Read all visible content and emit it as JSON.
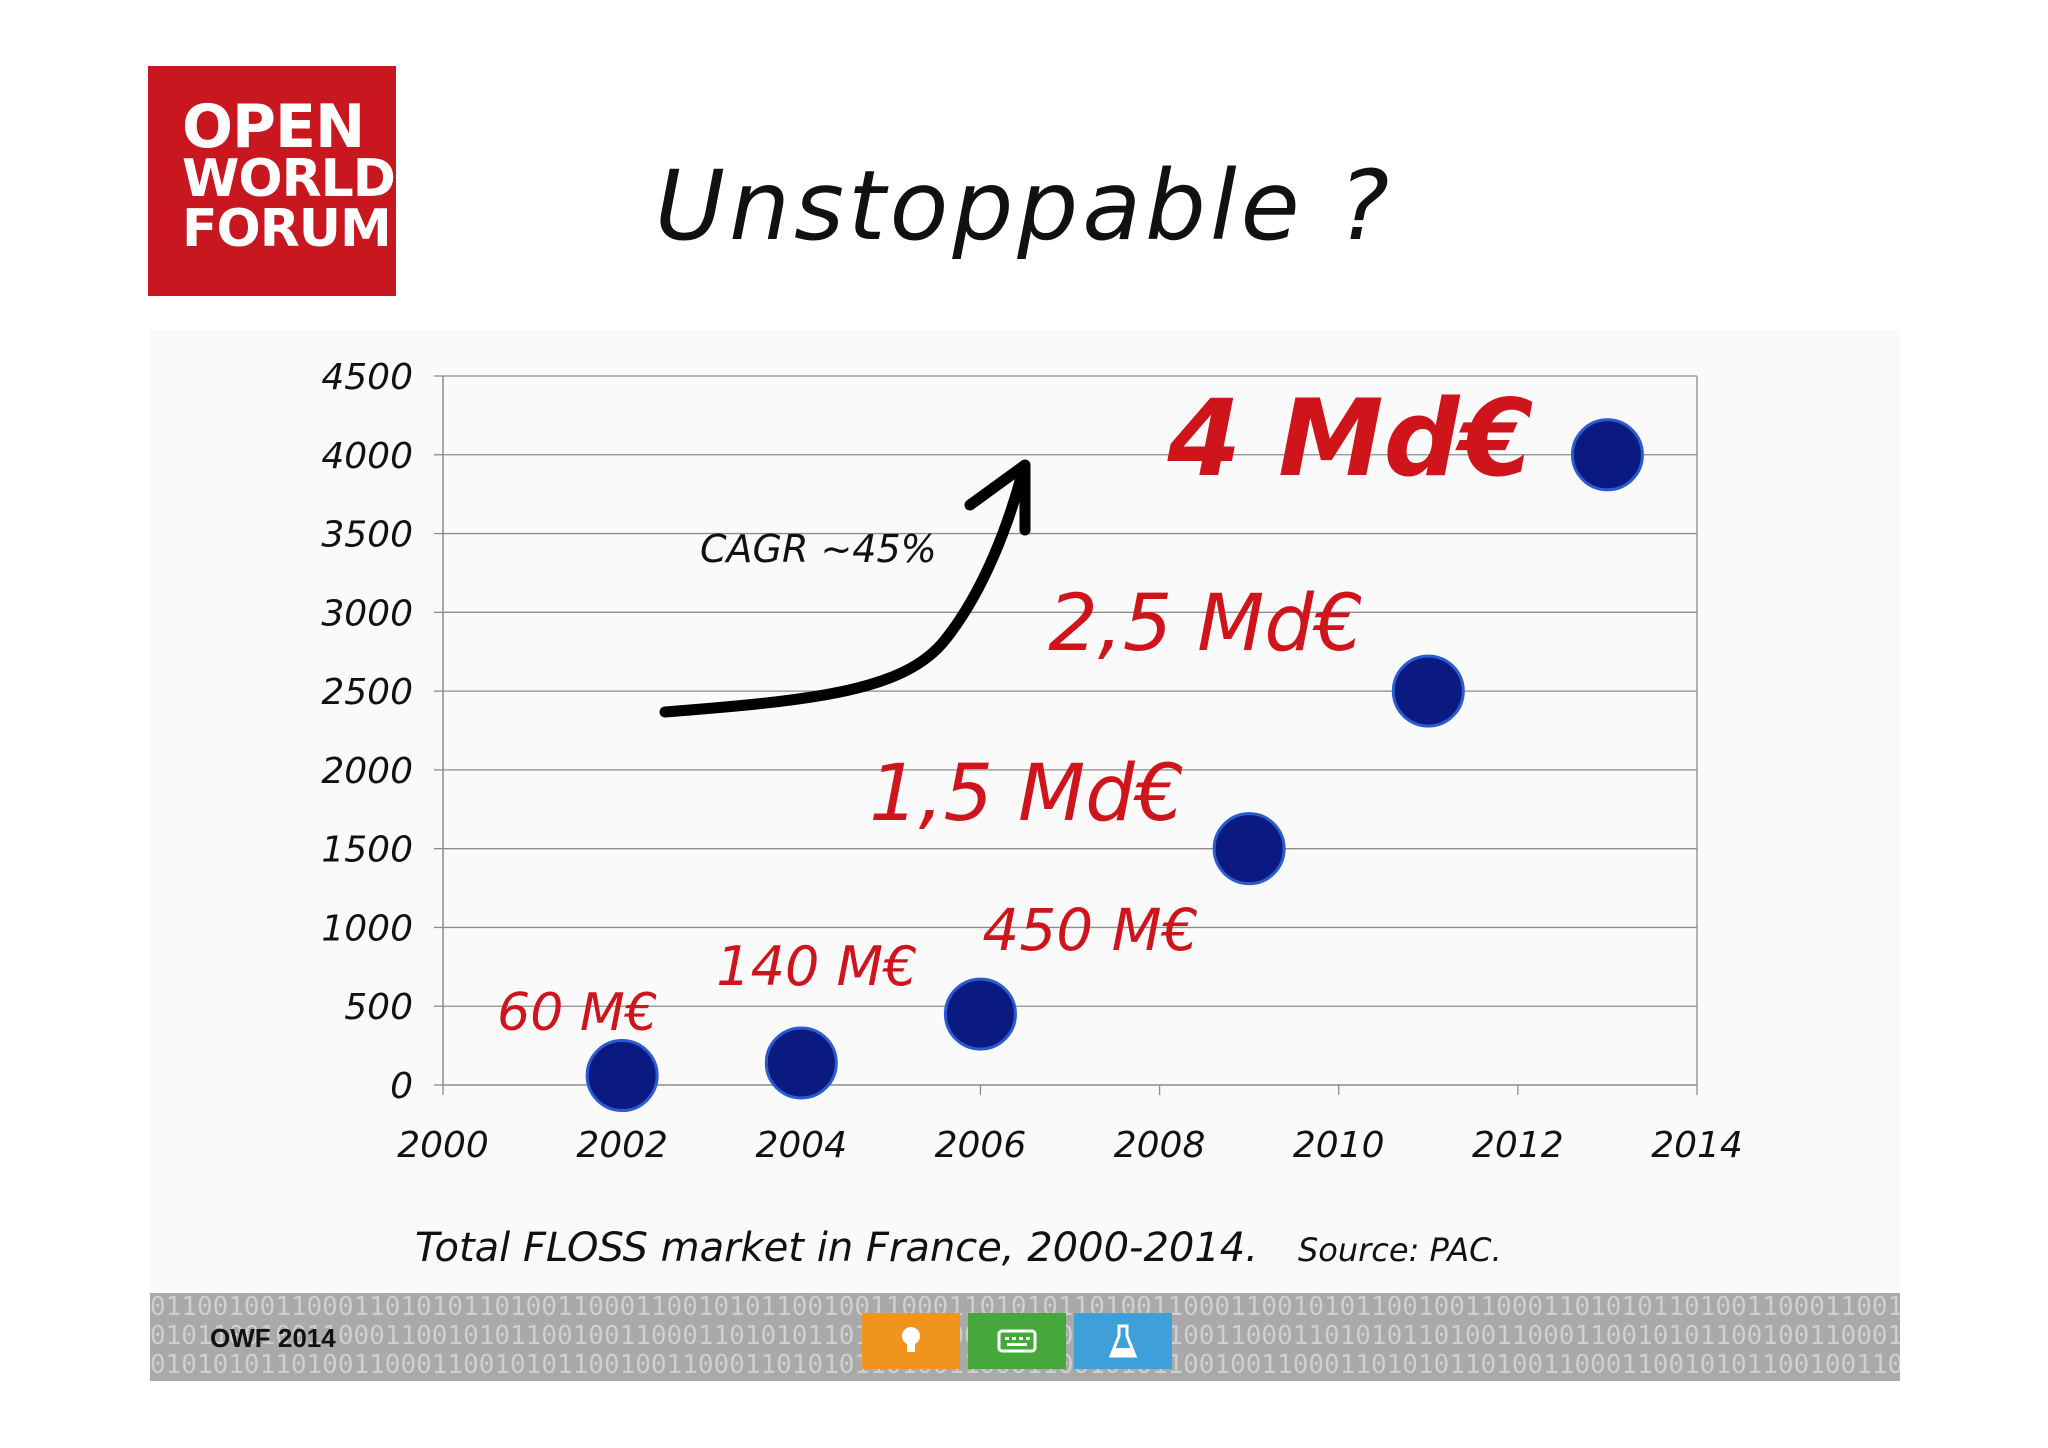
{
  "logo": {
    "line1": "OPEN",
    "line2": "WORLD",
    "line3": "FORUM",
    "color": "#c8171e"
  },
  "title": "Unstoppable ?",
  "caption": {
    "text": "Total FLOSS market in France,  2000-2014.",
    "source": "Source:  PAC."
  },
  "footer": {
    "label": "OWF 2014",
    "binary_rows": [
      "0110010011000110101011010011000110010101100100110001101010110100110001100101011001001100011010101101001100011001010110010011000110101011",
      "0101100100110001100101011001001100011010101101001100011001010110010011000110101011010011000110010101100100110001101010110100110001100101",
      "0101010110100110001100101011001001100011010101101001100011001010110010011000110101011010011000110010101100100110001101010110100110001101"
    ],
    "icons": [
      {
        "name": "bulb-icon",
        "color": "#f0941e"
      },
      {
        "name": "keyboard-icon",
        "color": "#46a73a"
      },
      {
        "name": "flask-icon",
        "color": "#3f9fd8"
      }
    ]
  },
  "chart_data": {
    "type": "scatter",
    "title": "",
    "xlabel": "",
    "ylabel": "",
    "xlim": [
      2000,
      2014
    ],
    "ylim": [
      0,
      4500
    ],
    "x_ticks": [
      "2000",
      "2002",
      "2004",
      "2006",
      "2008",
      "2010",
      "2012",
      "2014"
    ],
    "y_ticks": [
      "0",
      "500",
      "1000",
      "1500",
      "2000",
      "2500",
      "3000",
      "3500",
      "4000",
      "4500"
    ],
    "grid": true,
    "points": [
      {
        "x": 2002,
        "y": 60,
        "label": "60 M€"
      },
      {
        "x": 2004,
        "y": 140,
        "label": "140 M€"
      },
      {
        "x": 2006,
        "y": 450,
        "label": "450 M€"
      },
      {
        "x": 2009,
        "y": 1500,
        "label": "1,5 Md€"
      },
      {
        "x": 2011,
        "y": 2500,
        "label": "2,5 Md€"
      },
      {
        "x": 2013,
        "y": 4000,
        "label": "4 Md€"
      }
    ],
    "annotation": "CAGR ~45%",
    "point_color": "#0b1a80",
    "label_color": "#d0141b"
  }
}
